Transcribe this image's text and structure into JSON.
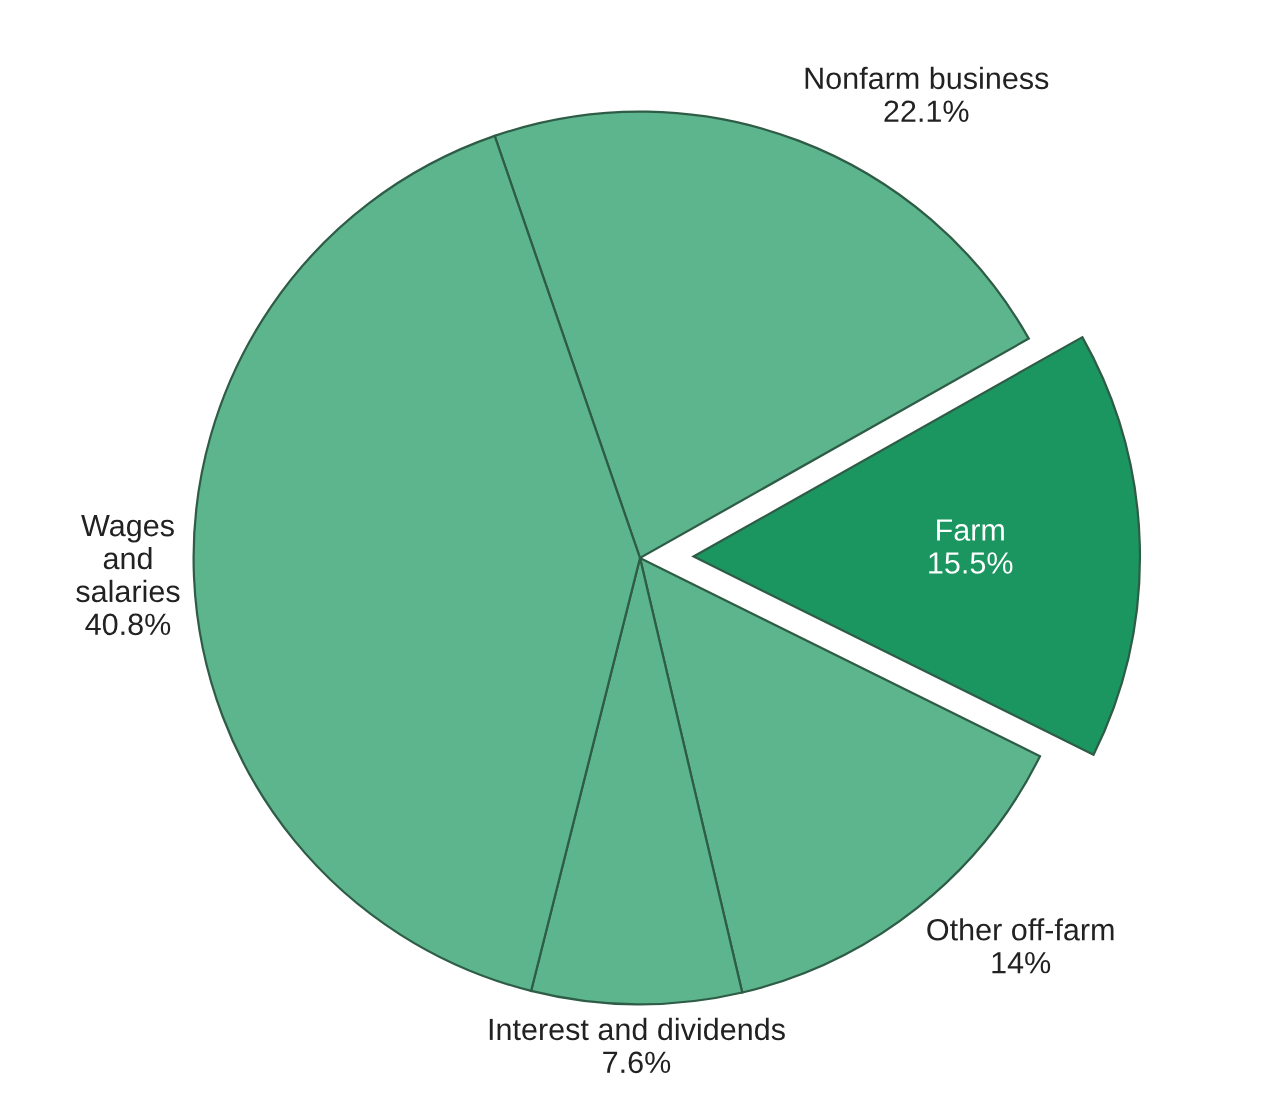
{
  "chart_data": {
    "type": "pie",
    "categories": [
      "Nonfarm business",
      "Farm",
      "Other off-farm",
      "Interest and dividends",
      "Wages\nand\nsalaries"
    ],
    "values": [
      22.1,
      15.5,
      14,
      7.6,
      40.8
    ],
    "value_labels": [
      "22.1%",
      "15.5%",
      "14%",
      "7.6%",
      "40.8%"
    ],
    "colors": [
      "#5cb58c",
      "#1b9660",
      "#5cb58c",
      "#5cb58c",
      "#5cb58c"
    ]
  }
}
